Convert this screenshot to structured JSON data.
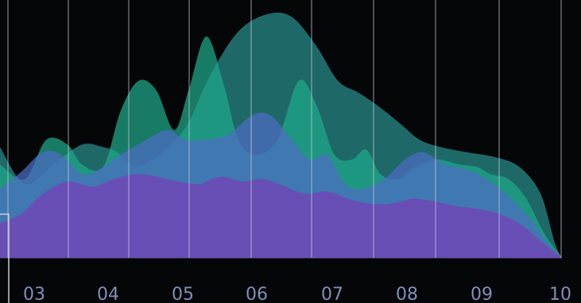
{
  "chart_data": {
    "type": "area",
    "x_ticks": [
      "03",
      "04",
      "05",
      "06",
      "07",
      "08",
      "09",
      "10"
    ],
    "xlim": [
      2.15,
      10.05
    ],
    "ylim": [
      0,
      100
    ],
    "grid": {
      "vertical": true,
      "horizontal": false
    },
    "colors": {
      "background": "#050608",
      "gridline": "#c9ccd4",
      "tick_label": "#7f8fb8",
      "green": "#1fa98a",
      "teal": "#2a8f8e",
      "blue": "#4d6cc4",
      "purple": "#6e48b6"
    },
    "series": [
      {
        "color": "#2a8f8e",
        "opacity": 0.72,
        "values": [
          [
            2.15,
            45
          ],
          [
            2.5,
            30
          ],
          [
            2.9,
            38
          ],
          [
            3.3,
            46
          ],
          [
            3.6,
            45
          ],
          [
            3.8,
            43
          ],
          [
            4.05,
            37
          ],
          [
            4.3,
            40
          ],
          [
            4.55,
            46
          ],
          [
            4.8,
            55
          ],
          [
            5.1,
            74
          ],
          [
            5.5,
            92
          ],
          [
            5.9,
            99
          ],
          [
            6.25,
            98
          ],
          [
            6.6,
            86
          ],
          [
            6.9,
            72
          ],
          [
            7.2,
            67
          ],
          [
            7.5,
            61
          ],
          [
            7.8,
            54
          ],
          [
            8.05,
            48
          ],
          [
            8.35,
            45
          ],
          [
            8.7,
            43
          ],
          [
            9.1,
            41
          ],
          [
            9.45,
            37
          ],
          [
            9.75,
            26
          ],
          [
            9.95,
            6
          ],
          [
            10.05,
            0
          ]
        ]
      },
      {
        "color": "#1fa98a",
        "opacity": 0.72,
        "values": [
          [
            2.15,
            38
          ],
          [
            2.5,
            32
          ],
          [
            2.8,
            48
          ],
          [
            3.1,
            46
          ],
          [
            3.3,
            38
          ],
          [
            3.6,
            37
          ],
          [
            3.85,
            60
          ],
          [
            4.1,
            72
          ],
          [
            4.35,
            68
          ],
          [
            4.6,
            52
          ],
          [
            4.8,
            68
          ],
          [
            5.05,
            90
          ],
          [
            5.3,
            70
          ],
          [
            5.5,
            48
          ],
          [
            5.75,
            42
          ],
          [
            6.05,
            48
          ],
          [
            6.35,
            72
          ],
          [
            6.6,
            62
          ],
          [
            6.85,
            42
          ],
          [
            7.1,
            40
          ],
          [
            7.3,
            44
          ],
          [
            7.5,
            34
          ],
          [
            7.75,
            32
          ],
          [
            8.0,
            37
          ],
          [
            8.3,
            40
          ],
          [
            8.6,
            38
          ],
          [
            8.85,
            37
          ],
          [
            9.05,
            34
          ],
          [
            9.3,
            32
          ],
          [
            9.55,
            24
          ],
          [
            9.8,
            10
          ],
          [
            10.05,
            0
          ]
        ]
      },
      {
        "color": "#4d6cc4",
        "opacity": 0.72,
        "values": [
          [
            2.15,
            28
          ],
          [
            2.45,
            35
          ],
          [
            2.75,
            43
          ],
          [
            3.0,
            42
          ],
          [
            3.3,
            34
          ],
          [
            3.55,
            36
          ],
          [
            3.85,
            42
          ],
          [
            4.15,
            47
          ],
          [
            4.5,
            52
          ],
          [
            4.75,
            48
          ],
          [
            5.0,
            48
          ],
          [
            5.35,
            50
          ],
          [
            5.7,
            58
          ],
          [
            5.95,
            58
          ],
          [
            6.2,
            50
          ],
          [
            6.5,
            40
          ],
          [
            6.75,
            42
          ],
          [
            7.0,
            30
          ],
          [
            7.25,
            28
          ],
          [
            7.55,
            32
          ],
          [
            7.85,
            40
          ],
          [
            8.1,
            43
          ],
          [
            8.4,
            38
          ],
          [
            8.7,
            36
          ],
          [
            9.0,
            32
          ],
          [
            9.3,
            25
          ],
          [
            9.6,
            16
          ],
          [
            9.85,
            6
          ],
          [
            10.05,
            0
          ]
        ]
      },
      {
        "color": "#6e48b6",
        "opacity": 0.85,
        "values": [
          [
            2.15,
            14
          ],
          [
            2.45,
            18
          ],
          [
            2.75,
            26
          ],
          [
            3.1,
            31
          ],
          [
            3.45,
            29
          ],
          [
            3.75,
            32
          ],
          [
            4.05,
            34
          ],
          [
            4.35,
            33
          ],
          [
            4.65,
            31
          ],
          [
            4.95,
            30
          ],
          [
            5.25,
            33
          ],
          [
            5.55,
            31
          ],
          [
            5.85,
            32
          ],
          [
            6.15,
            29
          ],
          [
            6.45,
            26
          ],
          [
            6.75,
            27
          ],
          [
            7.05,
            24
          ],
          [
            7.35,
            22
          ],
          [
            7.65,
            22
          ],
          [
            7.95,
            24
          ],
          [
            8.25,
            23
          ],
          [
            8.55,
            21
          ],
          [
            8.85,
            20
          ],
          [
            9.15,
            18
          ],
          [
            9.45,
            14
          ],
          [
            9.75,
            7
          ],
          [
            10.05,
            0
          ]
        ]
      }
    ]
  }
}
